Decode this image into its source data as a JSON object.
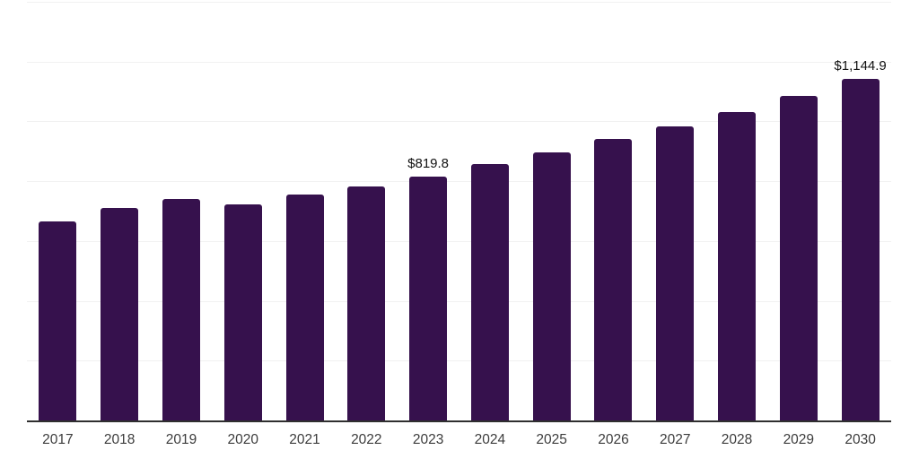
{
  "chart_data": {
    "type": "bar",
    "title": "",
    "xlabel": "",
    "ylabel": "",
    "categories": [
      "2017",
      "2018",
      "2019",
      "2020",
      "2021",
      "2022",
      "2023",
      "2024",
      "2025",
      "2026",
      "2027",
      "2028",
      "2029",
      "2030"
    ],
    "values": [
      670,
      713,
      744,
      727,
      758,
      786,
      819.8,
      860,
      900,
      943,
      986,
      1035,
      1089,
      1144.9
    ],
    "bar_labels": {
      "2023": "$819.8",
      "2030": "$1,144.9"
    },
    "ylim": [
      0,
      1400
    ],
    "gridline_interval": 200,
    "grid": true,
    "legend_position": "none",
    "y_tick_labels_visible": false
  },
  "colors": {
    "bar": "#36114D",
    "axis_line": "#2f2f2f",
    "gridline": "#f1f1f1",
    "x_tick_label": "#3c3c3c",
    "value_label": "#111111",
    "background": "#ffffff"
  }
}
